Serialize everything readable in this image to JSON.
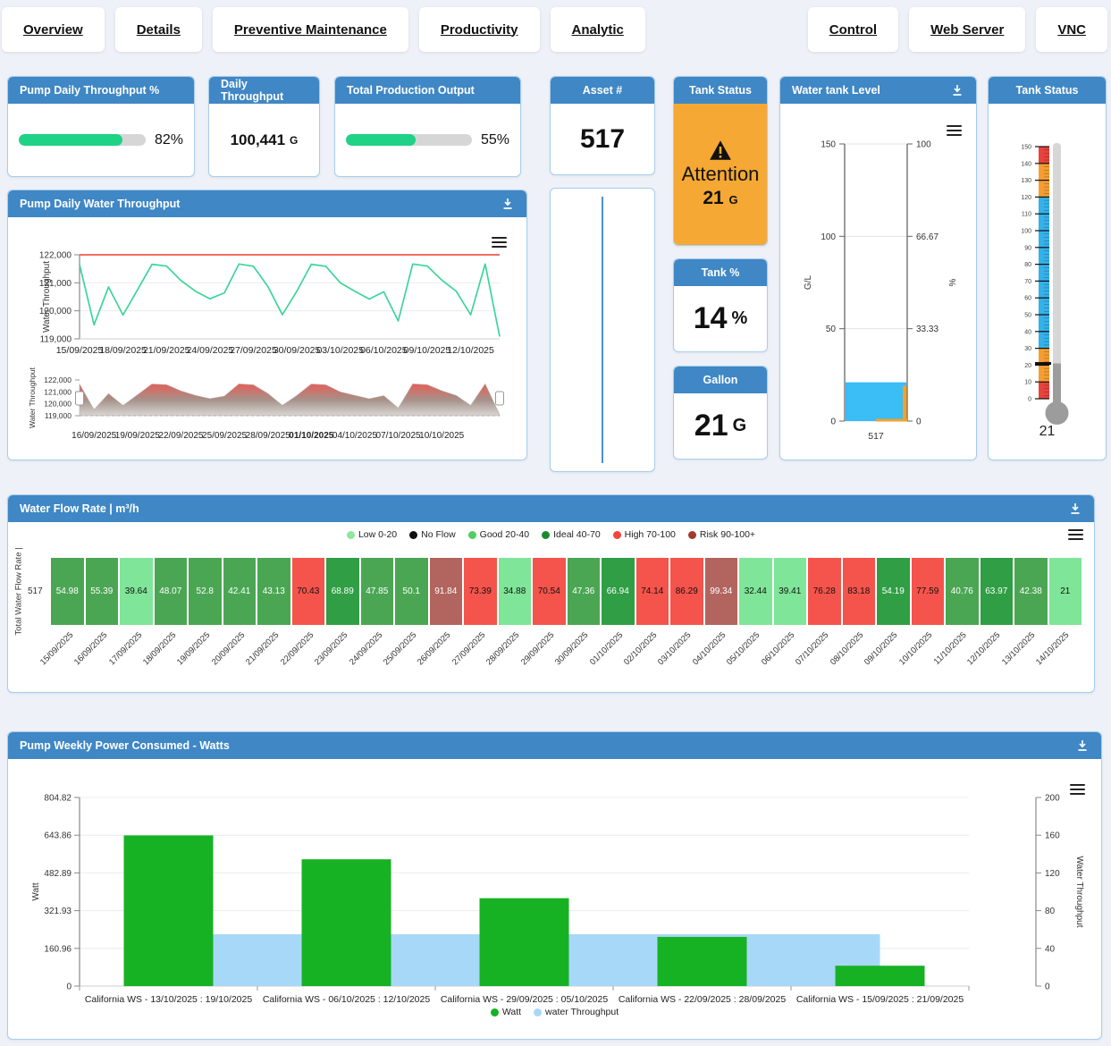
{
  "nav": {
    "left": [
      {
        "label": "Overview"
      },
      {
        "label": "Details"
      },
      {
        "label": "Preventive Maintenance"
      },
      {
        "label": "Productivity"
      },
      {
        "label": "Analytic"
      }
    ],
    "right": [
      {
        "label": "Control"
      },
      {
        "label": "Web Server"
      },
      {
        "label": "VNC"
      }
    ]
  },
  "colors": {
    "header_blue": "#3f87c5",
    "progress_green": "#1fd286",
    "status_orange": "#f5a833",
    "tank_bar_blue": "#3bbdf5",
    "tank_marker_orange": "#f0a22e",
    "line_green": "#3cd49b",
    "threshold_red": "#f1594f",
    "bar_green": "#17b224",
    "area_blue": "#a8d8f8"
  },
  "kpis": {
    "pump_daily_throughput": {
      "title": "Pump Daily Throughput %",
      "percent": 82,
      "label": "82%"
    },
    "daily_throughput": {
      "title": "Daily Throughput",
      "value": "100,441",
      "unit": "G"
    },
    "total_production_output": {
      "title": "Total Production Output",
      "percent": 55,
      "label": "55%"
    },
    "asset": {
      "title": "Asset #",
      "value": "517"
    },
    "tank_status": {
      "title": "Tank Status",
      "status": "Attention",
      "value": "21",
      "unit": "G"
    },
    "tank_percent": {
      "title": "Tank %",
      "value": "14",
      "unit": "%"
    },
    "gallon": {
      "title": "Gallon",
      "value": "21",
      "unit": "G"
    }
  },
  "charts": {
    "water_tank_level": {
      "title": "Water tank Level",
      "left_axis": {
        "label": "G/L",
        "ticks": [
          "150",
          "100",
          "50",
          "0"
        ],
        "max": 150
      },
      "right_axis": {
        "label": "%",
        "ticks": [
          "100",
          "66.67",
          "33.33",
          "0"
        ]
      },
      "category": "517",
      "value": 21,
      "bar_color": "#3bbdf5",
      "marker_color": "#f0a22e"
    },
    "tank_thermometer": {
      "title": "Tank Status",
      "min": 0,
      "max": 150,
      "tick_step": 10,
      "ticks": [
        "150",
        "140",
        "130",
        "120",
        "110",
        "100",
        "90",
        "80",
        "70",
        "60",
        "50",
        "40",
        "30",
        "20",
        "10",
        "0"
      ],
      "bands": [
        {
          "from": 0,
          "to": 10,
          "color": "#e8423c"
        },
        {
          "from": 10,
          "to": 30,
          "color": "#f59d31"
        },
        {
          "from": 30,
          "to": 120,
          "color": "#35b1ea"
        },
        {
          "from": 120,
          "to": 140,
          "color": "#f59d31"
        },
        {
          "from": 140,
          "to": 150,
          "color": "#e8423c"
        }
      ],
      "value": 21
    },
    "pump_daily_water_throughput": {
      "title": "Pump Daily Water Throughput",
      "y_label": "Water Throughput",
      "y_ticks": [
        "122,000",
        "121,000",
        "120,000",
        "119,000"
      ],
      "y_min": 119000,
      "y_max": 122000,
      "threshold": 122000,
      "line_color": "#3cd49b",
      "threshold_color": "#f1594f",
      "dates": [
        "15/09/2025",
        "16/09/2025",
        "17/09/2025",
        "18/09/2025",
        "19/09/2025",
        "20/09/2025",
        "21/09/2025",
        "22/09/2025",
        "23/09/2025",
        "24/09/2025",
        "25/09/2025",
        "26/09/2025",
        "27/09/2025",
        "28/09/2025",
        "29/09/2025",
        "30/09/2025",
        "01/10/2025",
        "02/10/2025",
        "03/10/2025",
        "04/10/2025",
        "05/10/2025",
        "06/10/2025",
        "07/10/2025",
        "08/10/2025",
        "09/10/2025",
        "10/10/2025",
        "11/10/2025",
        "12/10/2025",
        "13/10/2025",
        "14/10/2025"
      ],
      "values": [
        121650,
        119500,
        120850,
        119850,
        120750,
        121660,
        121600,
        121080,
        120700,
        120430,
        120640,
        121670,
        121590,
        120870,
        119860,
        120700,
        121660,
        121590,
        121000,
        120700,
        120420,
        120680,
        119640,
        121670,
        121600,
        121100,
        120700,
        119860,
        121670,
        119080
      ],
      "main_tick_indices": [
        0,
        3,
        6,
        9,
        12,
        15,
        18,
        21,
        24,
        27
      ],
      "nav_tick_indices": [
        1,
        4,
        7,
        10,
        13,
        16,
        19,
        22,
        25
      ],
      "nav_bold_tick": "01/10/2025"
    },
    "water_flow_rate": {
      "title": "Water Flow Rate | m³/h",
      "y_axis_label": "Total Water Flow Rate |",
      "row_label": "517",
      "legend": [
        {
          "label": "Low 0-20",
          "color": "#90e69c"
        },
        {
          "label": "No Flow",
          "color": "#111111"
        },
        {
          "label": "Good 20-40",
          "color": "#4fce63"
        },
        {
          "label": "Ideal 40-70",
          "color": "#1d8a33"
        },
        {
          "label": "High 70-100",
          "color": "#f4443c"
        },
        {
          "label": "Risk 90-100+",
          "color": "#a23a30"
        }
      ],
      "palette": {
        "g1": "#7fe598",
        "g2": "#4ba654",
        "g3": "#2f9e44",
        "r": "#f4544c",
        "m": "#b2655e"
      },
      "dark_text_keys": [
        "g1",
        "r"
      ],
      "dates": [
        "15/09/2025",
        "16/09/2025",
        "17/09/2025",
        "18/09/2025",
        "19/09/2025",
        "20/09/2025",
        "21/09/2025",
        "22/09/2025",
        "23/09/2025",
        "24/09/2025",
        "25/09/2025",
        "26/09/2025",
        "27/09/2025",
        "28/09/2025",
        "29/09/2025",
        "30/09/2025",
        "01/10/2025",
        "02/10/2025",
        "03/10/2025",
        "04/10/2025",
        "05/10/2025",
        "06/10/2025",
        "07/10/2025",
        "08/10/2025",
        "09/10/2025",
        "10/10/2025",
        "11/10/2025",
        "12/10/2025",
        "13/10/2025",
        "14/10/2025"
      ],
      "values": [
        54.98,
        55.39,
        39.64,
        48.07,
        52.8,
        42.41,
        43.13,
        70.43,
        68.89,
        47.85,
        50.1,
        91.84,
        73.39,
        34.88,
        70.54,
        47.36,
        66.94,
        74.14,
        86.29,
        99.34,
        32.44,
        39.41,
        76.28,
        83.18,
        54.19,
        77.59,
        40.76,
        63.97,
        42.38,
        21
      ],
      "cell_colors": [
        "g2",
        "g2",
        "g1",
        "g2",
        "g2",
        "g2",
        "g2",
        "r",
        "g3",
        "g2",
        "g2",
        "m",
        "r",
        "g1",
        "r",
        "g2",
        "g3",
        "r",
        "r",
        "m",
        "g1",
        "g1",
        "r",
        "r",
        "g3",
        "r",
        "g2",
        "g3",
        "g2",
        "g1"
      ]
    },
    "power": {
      "title": "Pump Weekly Power Consumed - Watts",
      "left_axis": {
        "label": "Watt",
        "ticks": [
          "804.82",
          "643.86",
          "482.89",
          "321.93",
          "160.96",
          "0"
        ],
        "max": 804.82
      },
      "right_axis": {
        "label": "Water Throughput",
        "ticks": [
          "200",
          "160",
          "120",
          "80",
          "40",
          "0"
        ],
        "max": 200
      },
      "categories": [
        "California WS - 13/10/2025 : 19/10/2025",
        "California WS - 06/10/2025 : 12/10/2025",
        "California WS - 29/09/2025 : 05/10/2025",
        "California WS - 22/09/2025 : 28/09/2025",
        "California WS - 15/09/2025 : 21/09/2025"
      ],
      "watt_values": [
        643,
        541,
        375,
        210,
        87
      ],
      "water_throughput_value": 55,
      "bar_color": "#17b224",
      "area_color": "#a8d8f8",
      "legend": [
        {
          "label": "Watt",
          "color": "#17b224"
        },
        {
          "label": "water Throughput",
          "color": "#a8d8f8"
        }
      ]
    }
  }
}
